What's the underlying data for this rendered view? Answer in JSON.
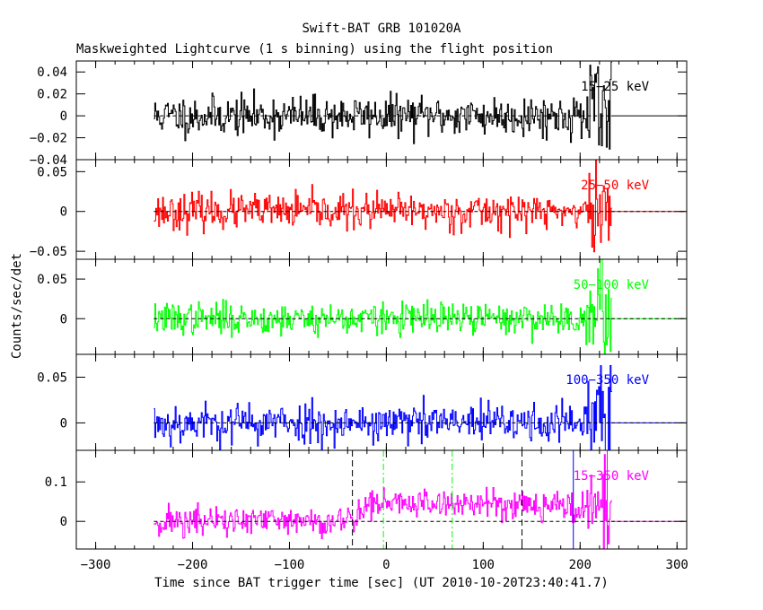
{
  "chart_data": {
    "type": "line",
    "title": "Swift-BAT GRB 101020A",
    "subtitle": "Maskweighted Lightcurve (1 s binning) using the flight position",
    "xlabel": "Time since BAT trigger time [sec] (UT 2010-10-20T23:40:41.7)",
    "ylabel": "Counts/sec/det",
    "xlim": [
      -320,
      310
    ],
    "x_ticks": [
      -300,
      -200,
      -100,
      0,
      100,
      200,
      300
    ],
    "x_tick_labels": [
      "−300",
      "−200",
      "−100",
      "0",
      "100",
      "200",
      "300"
    ],
    "data_range": [
      -240,
      232
    ],
    "panels": [
      {
        "band": "15−25 keV",
        "color": "#000000",
        "ylim": [
          -0.04,
          0.05
        ],
        "yticks": [
          0.04,
          0.02,
          0,
          -0.02,
          -0.04
        ],
        "ytick_labels": [
          "0.04",
          "0.02",
          "0",
          "−0.02",
          "−0.04"
        ],
        "noise_sd": 0.009,
        "seed": 11
      },
      {
        "band": "25−50 keV",
        "color": "#ff0000",
        "ylim": [
          -0.06,
          0.065
        ],
        "yticks": [
          0.05,
          0,
          -0.05
        ],
        "ytick_labels": [
          "0.05",
          "0",
          "−0.05"
        ],
        "noise_sd": 0.011,
        "seed": 23
      },
      {
        "band": "50−100 keV",
        "color": "#00ff00",
        "ylim": [
          -0.045,
          0.075
        ],
        "yticks": [
          0.05,
          0
        ],
        "ytick_labels": [
          "0.05",
          "0"
        ],
        "noise_sd": 0.01,
        "seed": 37
      },
      {
        "band": "100−350 keV",
        "color": "#0000ff",
        "ylim": [
          -0.03,
          0.075
        ],
        "yticks": [
          0.05,
          0
        ],
        "ytick_labels": [
          "0.05",
          "0"
        ],
        "noise_sd": 0.011,
        "seed": 53
      },
      {
        "band": "15−350 keV",
        "color": "#ff00ff",
        "ylim": [
          -0.07,
          0.18
        ],
        "yticks": [
          0.1,
          0
        ],
        "ytick_labels": [
          "0.1",
          "0"
        ],
        "noise_sd": 0.02,
        "seed": 71,
        "burst": {
          "start": -40,
          "rise_end": -20,
          "fall_start": 160,
          "end": 232,
          "level": 0.045
        }
      }
    ],
    "annotations": [
      {
        "type": "vline",
        "x": -35,
        "style": "dashed",
        "color": "#000000",
        "panel": 4
      },
      {
        "type": "vline",
        "x": 140,
        "style": "dashed",
        "color": "#000000",
        "panel": 4
      },
      {
        "type": "vline",
        "x": -3,
        "style": "dash-dot",
        "color": "#00ff00",
        "panel": 4
      },
      {
        "type": "vline",
        "x": 68,
        "style": "dash-dot",
        "color": "#00ff00",
        "panel": 4
      },
      {
        "type": "vline",
        "x": 193,
        "style": "solid",
        "color": "#0000ff",
        "panel": 4
      },
      {
        "type": "vline",
        "x": 228,
        "style": "solid",
        "color": "#ff00ff",
        "panel": 4
      }
    ]
  }
}
